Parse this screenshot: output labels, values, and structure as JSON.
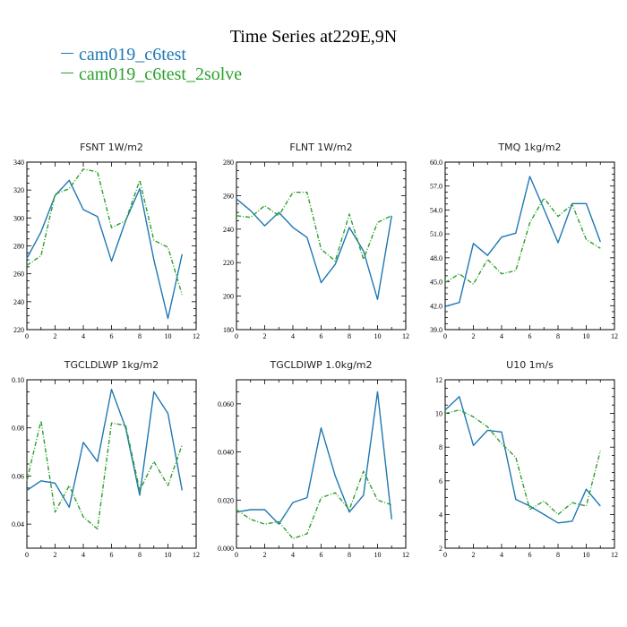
{
  "title": "Time Series at229E,9N",
  "legend": [
    {
      "label": "cam019_c6test",
      "color": "#1f77b4"
    },
    {
      "label": "cam019_c6test_2solve",
      "color": "#2ca02c"
    }
  ],
  "chart_data": [
    {
      "type": "line",
      "title": "FSNT   1W/m2",
      "x": [
        0,
        1,
        2,
        3,
        4,
        5,
        6,
        7,
        8,
        9,
        10,
        11
      ],
      "xlim": [
        0,
        12
      ],
      "xticks": [
        "0",
        "2",
        "4",
        "6",
        "8",
        "10",
        "12"
      ],
      "ylim": [
        220,
        340
      ],
      "yticks": [
        "220",
        "240",
        "260",
        "280",
        "300",
        "320",
        "340"
      ],
      "series": [
        {
          "name": "cam019_c6test",
          "values": [
            271,
            290,
            316,
            327,
            306,
            301,
            269,
            298,
            321,
            270,
            228,
            274
          ]
        },
        {
          "name": "cam019_c6test_2solve",
          "values": [
            266,
            273,
            317,
            321,
            335,
            333,
            293,
            298,
            327,
            284,
            279,
            245
          ]
        }
      ]
    },
    {
      "type": "line",
      "title": "FLNT   1W/m2",
      "x": [
        0,
        1,
        2,
        3,
        4,
        5,
        6,
        7,
        8,
        9,
        10,
        11
      ],
      "xlim": [
        0,
        12
      ],
      "xticks": [
        "0",
        "2",
        "4",
        "6",
        "8",
        "10",
        "12"
      ],
      "ylim": [
        180,
        280
      ],
      "yticks": [
        "180",
        "200",
        "220",
        "240",
        "260",
        "280"
      ],
      "series": [
        {
          "name": "cam019_c6test",
          "values": [
            258,
            251,
            242,
            250,
            241,
            235,
            208,
            219,
            241,
            227,
            198,
            248
          ]
        },
        {
          "name": "cam019_c6test_2solve",
          "values": [
            248,
            247,
            254,
            248,
            262,
            262,
            228,
            221,
            249,
            222,
            244,
            248
          ]
        }
      ]
    },
    {
      "type": "line",
      "title": "TMQ   1kg/m2",
      "x": [
        0,
        1,
        2,
        3,
        4,
        5,
        6,
        7,
        8,
        9,
        10,
        11
      ],
      "xlim": [
        0,
        12
      ],
      "xticks": [
        "0",
        "2",
        "4",
        "6",
        "8",
        "10",
        "12"
      ],
      "ylim": [
        39.0,
        60.0
      ],
      "yticks": [
        "39.0",
        "42.0",
        "45.0",
        "48.0",
        "51.0",
        "54.0",
        "57.0",
        "60.0"
      ],
      "series": [
        {
          "name": "cam019_c6test",
          "values": [
            41.9,
            42.4,
            49.8,
            48.3,
            50.6,
            51.1,
            58.2,
            54.1,
            49.9,
            54.8,
            54.8,
            50.0
          ]
        },
        {
          "name": "cam019_c6test_2solve",
          "values": [
            44.9,
            46.0,
            44.7,
            47.8,
            46.0,
            46.4,
            52.4,
            55.5,
            53.2,
            54.7,
            50.3,
            49.2
          ]
        }
      ]
    },
    {
      "type": "line",
      "title": "TGCLDLWP   1kg/m2",
      "x": [
        0,
        1,
        2,
        3,
        4,
        5,
        6,
        7,
        8,
        9,
        10,
        11
      ],
      "xlim": [
        0,
        12
      ],
      "xticks": [
        "0",
        "2",
        "4",
        "6",
        "8",
        "10",
        "12"
      ],
      "ylim": [
        0.03,
        0.1
      ],
      "yticks": [
        "0.04",
        "0.06",
        "0.08",
        "0.10"
      ],
      "series": [
        {
          "name": "cam019_c6test",
          "values": [
            0.054,
            0.058,
            0.057,
            0.047,
            0.074,
            0.066,
            0.096,
            0.08,
            0.052,
            0.095,
            0.086,
            0.054
          ]
        },
        {
          "name": "cam019_c6test_2solve",
          "values": [
            0.058,
            0.083,
            0.045,
            0.056,
            0.043,
            0.038,
            0.082,
            0.081,
            0.054,
            0.066,
            0.056,
            0.073
          ]
        }
      ]
    },
    {
      "type": "line",
      "title": "TGCLDIWP   1.0kg/m2",
      "x": [
        0,
        1,
        2,
        3,
        4,
        5,
        6,
        7,
        8,
        9,
        10,
        11
      ],
      "xlim": [
        0,
        12
      ],
      "xticks": [
        "0",
        "2",
        "4",
        "6",
        "8",
        "10",
        "12"
      ],
      "ylim": [
        0.0,
        0.07
      ],
      "yticks": [
        "0.000",
        "0.020",
        "0.040",
        "0.060"
      ],
      "series": [
        {
          "name": "cam019_c6test",
          "values": [
            0.015,
            0.016,
            0.016,
            0.01,
            0.019,
            0.021,
            0.05,
            0.03,
            0.015,
            0.022,
            0.065,
            0.012
          ]
        },
        {
          "name": "cam019_c6test_2solve",
          "values": [
            0.016,
            0.012,
            0.01,
            0.011,
            0.004,
            0.006,
            0.021,
            0.023,
            0.016,
            0.032,
            0.02,
            0.018
          ]
        }
      ]
    },
    {
      "type": "line",
      "title": "U10   1m/s",
      "x": [
        0,
        1,
        2,
        3,
        4,
        5,
        6,
        7,
        8,
        9,
        10,
        11
      ],
      "xlim": [
        0,
        12
      ],
      "xticks": [
        "0",
        "2",
        "4",
        "6",
        "8",
        "10",
        "12"
      ],
      "ylim": [
        2,
        12
      ],
      "yticks": [
        "2",
        "4",
        "6",
        "8",
        "10",
        "12"
      ],
      "series": [
        {
          "name": "cam019_c6test",
          "values": [
            10.2,
            11.0,
            8.1,
            9.0,
            8.9,
            4.9,
            4.5,
            4.0,
            3.5,
            3.6,
            5.5,
            4.5
          ]
        },
        {
          "name": "cam019_c6test_2solve",
          "values": [
            10.0,
            10.2,
            9.8,
            9.2,
            8.2,
            7.4,
            4.3,
            4.8,
            4.0,
            4.7,
            4.5,
            7.8
          ]
        }
      ]
    }
  ]
}
